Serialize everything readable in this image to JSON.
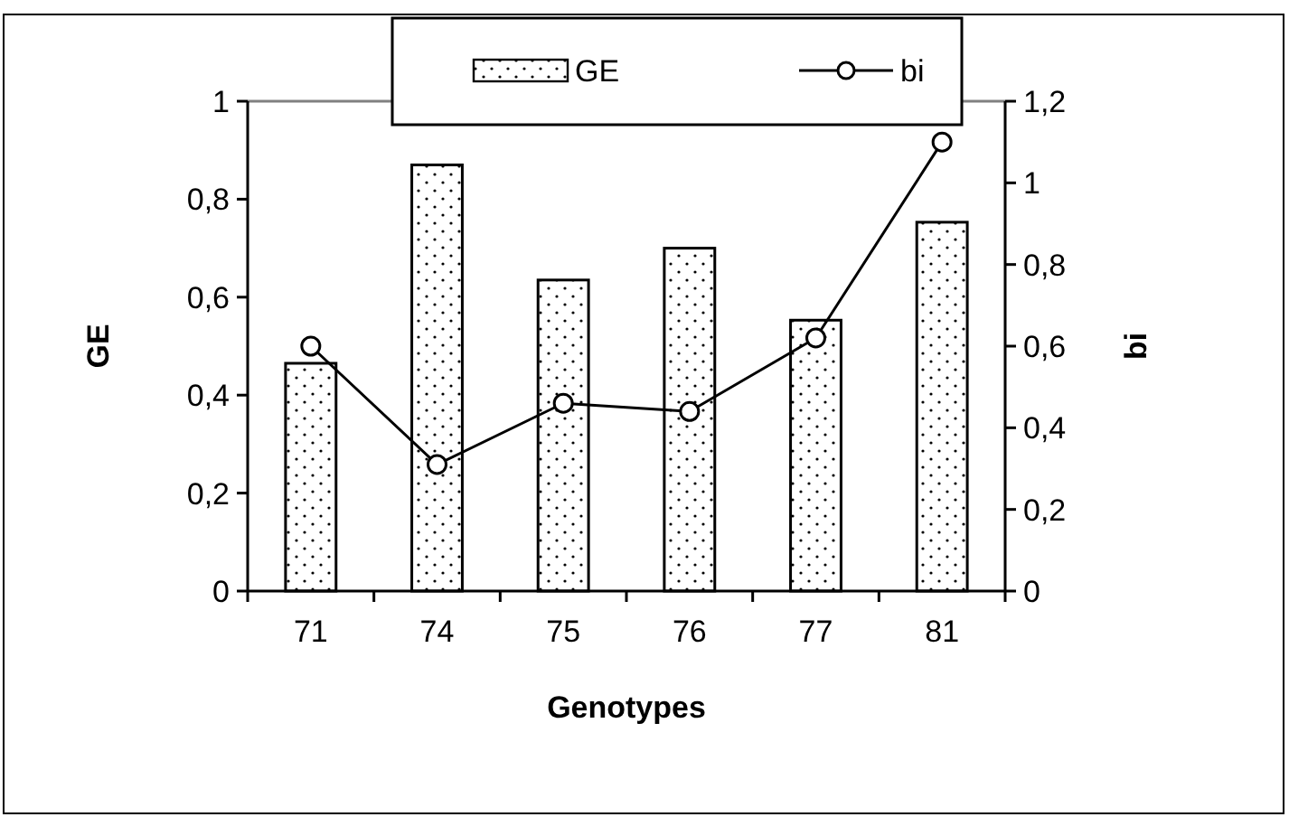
{
  "chart_data": {
    "type": "bar",
    "xlabel": "Genotypes",
    "ylabel": "GE",
    "y2label": "bi",
    "categories": [
      "71",
      "74",
      "75",
      "76",
      "77",
      "81"
    ],
    "series": [
      {
        "name": "GE",
        "color": "#ffffff",
        "values": [
          0.465,
          0.87,
          0.635,
          0.7,
          0.553,
          0.753
        ]
      },
      {
        "name": "bi",
        "type": "line",
        "axis": "y2",
        "color": "#000000",
        "marker": "circle",
        "values": [
          0.6,
          0.31,
          0.46,
          0.44,
          0.62,
          1.1
        ]
      }
    ],
    "ylim": [
      0,
      1
    ],
    "yticks": [
      0,
      {
        "value": 0.2,
        "label": "0,2"
      },
      {
        "value": 0.4,
        "label": "0,4"
      },
      {
        "value": 0.6,
        "label": "0,6"
      },
      {
        "value": 0.8,
        "label": "0,8"
      },
      1
    ],
    "y2lim": [
      0,
      1.2
    ],
    "y2ticks": [
      0,
      {
        "value": 0.2,
        "label": "0,2"
      },
      {
        "value": 0.4,
        "label": "0,4"
      },
      {
        "value": 0.6,
        "label": "0,6"
      },
      {
        "value": 0.8,
        "label": "0,8"
      },
      1,
      {
        "value": 1.2,
        "label": "1,2"
      }
    ],
    "legend": "top",
    "grid": false
  }
}
